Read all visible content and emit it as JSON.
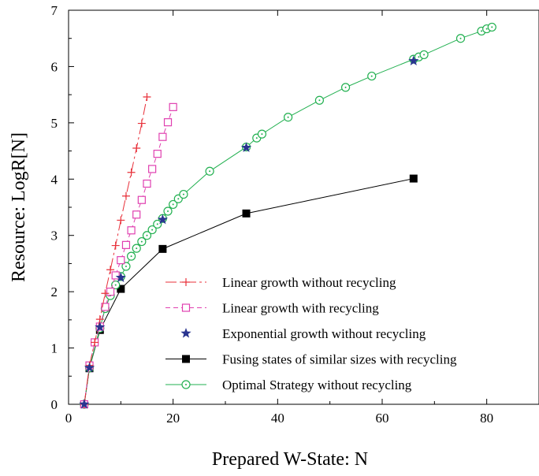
{
  "chart_data": {
    "type": "line",
    "xlabel": "Prepared W-State: N",
    "ylabel": "Resource: LogR[N]",
    "xlim": [
      0,
      90
    ],
    "ylim": [
      0,
      7
    ],
    "xticks": [
      0,
      20,
      40,
      60,
      80
    ],
    "yticks": [
      0,
      1,
      2,
      3,
      4,
      5,
      6,
      7
    ],
    "grid": false,
    "legend_position": "bottom-right",
    "series": [
      {
        "name": "Linear growth without recycling",
        "color": "#e8303a",
        "marker": "plus",
        "dash": "dashdot",
        "x": [
          3,
          4,
          5,
          6,
          7,
          8,
          9,
          10,
          11,
          12,
          13,
          14,
          15
        ],
        "y": [
          0.0,
          0.69,
          1.1,
          1.51,
          1.97,
          2.39,
          2.82,
          3.27,
          3.7,
          4.12,
          4.55,
          4.99,
          5.46
        ]
      },
      {
        "name": "Linear growth with recycling",
        "color": "#e040b0",
        "marker": "square-open",
        "dash": "dash",
        "x": [
          3,
          4,
          5,
          6,
          7,
          8,
          9,
          10,
          11,
          12,
          13,
          14,
          15,
          16,
          17,
          18,
          19,
          20
        ],
        "y": [
          0.0,
          0.69,
          1.1,
          1.38,
          1.73,
          2.0,
          2.29,
          2.56,
          2.83,
          3.09,
          3.37,
          3.63,
          3.92,
          4.18,
          4.45,
          4.75,
          5.01,
          5.28
        ]
      },
      {
        "name": "Exponential growth without recycling",
        "color": "#2a3590",
        "marker": "star",
        "dash": "none",
        "x": [
          3,
          4,
          6,
          10,
          18,
          34,
          66
        ],
        "y": [
          0.0,
          0.65,
          1.37,
          2.25,
          3.28,
          4.56,
          6.1
        ]
      },
      {
        "name": "Fusing states of similar sizes with recycling",
        "color": "#000000",
        "marker": "square-filled",
        "dash": "solid",
        "x": [
          3,
          4,
          6,
          10,
          18,
          34,
          66
        ],
        "y": [
          0.0,
          0.64,
          1.32,
          2.05,
          2.76,
          3.39,
          4.01
        ]
      },
      {
        "name": "Optimal Strategy without recycling",
        "color": "#22b050",
        "marker": "circle-dot",
        "dash": "solid",
        "x": [
          3,
          4,
          6,
          7,
          8,
          9,
          10,
          11,
          12,
          13,
          14,
          15,
          16,
          17,
          18,
          19,
          20,
          21,
          22,
          27,
          34,
          36,
          37,
          42,
          48,
          53,
          58,
          66,
          67,
          68,
          75,
          79,
          80,
          81
        ],
        "y": [
          0.0,
          0.65,
          1.35,
          1.7,
          1.93,
          2.12,
          2.27,
          2.45,
          2.63,
          2.77,
          2.89,
          3.0,
          3.1,
          3.2,
          3.3,
          3.43,
          3.55,
          3.65,
          3.73,
          4.14,
          4.57,
          4.73,
          4.8,
          5.1,
          5.4,
          5.63,
          5.83,
          6.13,
          6.17,
          6.21,
          6.5,
          6.63,
          6.67,
          6.7
        ]
      }
    ]
  }
}
